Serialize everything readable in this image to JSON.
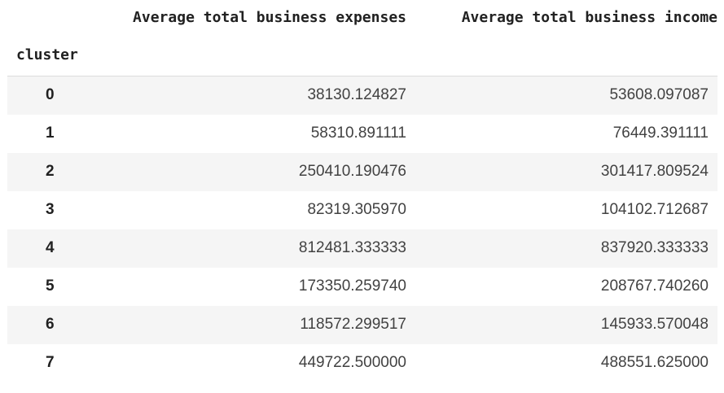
{
  "table": {
    "columns": [
      "Average total business expenses",
      "Average total business income"
    ],
    "index_name": "cluster",
    "rows": [
      {
        "index": "0",
        "values": [
          "38130.124827",
          "53608.097087"
        ]
      },
      {
        "index": "1",
        "values": [
          "58310.891111",
          "76449.391111"
        ]
      },
      {
        "index": "2",
        "values": [
          "250410.190476",
          "301417.809524"
        ]
      },
      {
        "index": "3",
        "values": [
          "82319.305970",
          "104102.712687"
        ]
      },
      {
        "index": "4",
        "values": [
          "812481.333333",
          "837920.333333"
        ]
      },
      {
        "index": "5",
        "values": [
          "173350.259740",
          "208767.740260"
        ]
      },
      {
        "index": "6",
        "values": [
          "118572.299517",
          "145933.570048"
        ]
      },
      {
        "index": "7",
        "values": [
          "449722.500000",
          "488551.625000"
        ]
      }
    ]
  }
}
